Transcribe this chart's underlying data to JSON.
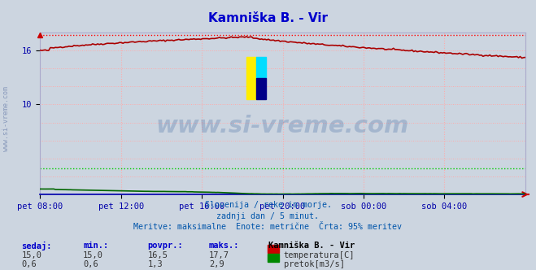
{
  "title": "Kamniška B. - Vir",
  "title_color": "#0000cc",
  "bg_color": "#ccd5e0",
  "grid_color": "#ffaaaa",
  "grid_vstyle": ":",
  "xlabel_color": "#0000aa",
  "ytick_color": "#0000aa",
  "watermark_text": "www.si-vreme.com",
  "watermark_color": "#4a6fa5",
  "watermark_alpha": 0.3,
  "subtitle_lines": [
    "Slovenija / reke in morje.",
    "zadnji dan / 5 minut.",
    "Meritve: maksimalne  Enote: metrične  Črta: 95% meritev"
  ],
  "subtitle_color": "#0055aa",
  "xticklabels": [
    "pet 08:00",
    "pet 12:00",
    "pet 16:00",
    "pet 20:00",
    "sob 00:00",
    "sob 04:00"
  ],
  "xtick_positions": [
    0.0,
    0.1667,
    0.3333,
    0.5,
    0.6667,
    0.8333
  ],
  "ylim_min": 0,
  "ylim_max": 18,
  "ytick_vals": [
    10,
    16
  ],
  "temp_color": "#aa0000",
  "flow_color": "#006600",
  "height_color": "#0000bb",
  "dashed_color_temp": "#ff0000",
  "dashed_color_flow": "#00cc00",
  "temp_max_line": 17.7,
  "flow_max_line": 2.9,
  "legend_header": "Kamniška B. - Vir",
  "stats_sedaj_label": "sedaj:",
  "stats_min_label": "min.:",
  "stats_povpr_label": "povpr.:",
  "stats_maks_label": "maks.:",
  "temp_stats": [
    15.0,
    15.0,
    16.5,
    17.7
  ],
  "flow_stats": [
    0.6,
    0.6,
    1.3,
    2.9
  ],
  "temp_label": "temperatura[C]",
  "flow_label": "pretok[m3/s]",
  "figsize": [
    6.59,
    3.32
  ],
  "dpi": 100,
  "left_label": "www.si-vreme.com",
  "left_label_color": "#8899bb"
}
